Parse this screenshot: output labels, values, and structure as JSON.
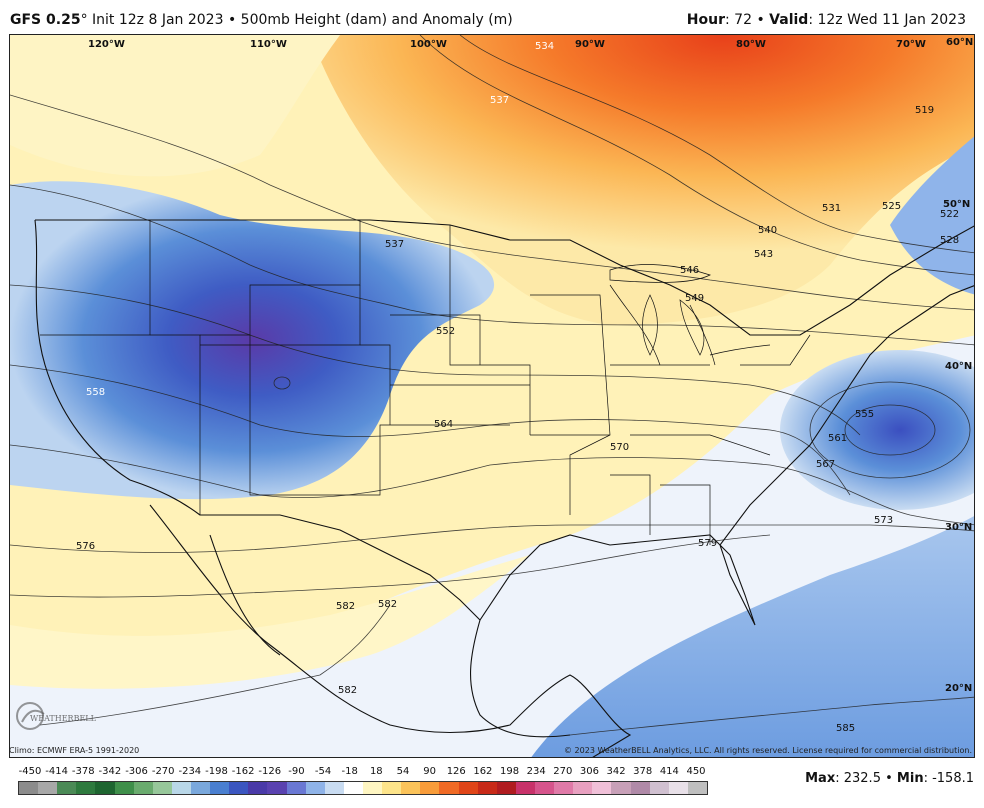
{
  "header": {
    "model": "GFS 0.25",
    "degree": "°",
    "init": "Init 12z 8 Jan 2023",
    "bullet": "•",
    "product": "500mb Height (dam) and Anomaly (m)",
    "hour_label": "Hour",
    "hour_value": ": 72",
    "valid_label": "Valid",
    "valid_value": ": 12z Wed 11 Jan 2023"
  },
  "longitudes": [
    "120°W",
    "110°W",
    "100°W",
    "90°W",
    "80°W",
    "70°W",
    "60°N"
  ],
  "latitudes": [
    "50°N",
    "40°N",
    "30°N",
    "20°N"
  ],
  "contour_labels": [
    "534",
    "537",
    "537",
    "519",
    "531",
    "525",
    "522",
    "528",
    "540",
    "543",
    "546",
    "549",
    "552",
    "555",
    "558",
    "561",
    "564",
    "567",
    "570",
    "573",
    "576",
    "579",
    "582",
    "582",
    "582",
    "585"
  ],
  "footer": {
    "climo": "Climo: ECMWF ERA-5 1991-2020",
    "copyright": "© 2023 WeatherBELL Analytics, LLC. All rights reserved. License required for commercial distribution.",
    "logo_text": "WEATHERBELL"
  },
  "legend": {
    "ticks": [
      "-450",
      "-414",
      "-378",
      "-342",
      "-306",
      "-270",
      "-234",
      "-198",
      "-162",
      "-126",
      "-90",
      "-54",
      "-18",
      "18",
      "54",
      "90",
      "126",
      "162",
      "198",
      "234",
      "270",
      "306",
      "342",
      "378",
      "414",
      "450"
    ],
    "colors": [
      "#8c8c8c",
      "#a8a8a8",
      "#4b8a56",
      "#2e7a3e",
      "#1e6530",
      "#3f8f4a",
      "#6aab6e",
      "#97c79a",
      "#b9d7e8",
      "#7aa8dc",
      "#4a7fd0",
      "#3b56c0",
      "#4a3aa8",
      "#5a42b0",
      "#6a78d4",
      "#8fb3e8",
      "#c9dcf2",
      "#ffffff",
      "#fff6c2",
      "#fde48a",
      "#fbc35a",
      "#f89c3a",
      "#f06a25",
      "#e04518",
      "#c82a18",
      "#b01c20",
      "#c8326a",
      "#d6548c",
      "#e07aa8",
      "#e8a0c0",
      "#f0c0d8",
      "#c8a0b8",
      "#b08aa8",
      "#d0c0d0",
      "#e8e0e8",
      "#bfbfbf"
    ]
  },
  "stats": {
    "max_label": "Max",
    "max_value": ": 232.5",
    "sep": "•",
    "min_label": "Min",
    "min_value": ": -158.1"
  }
}
